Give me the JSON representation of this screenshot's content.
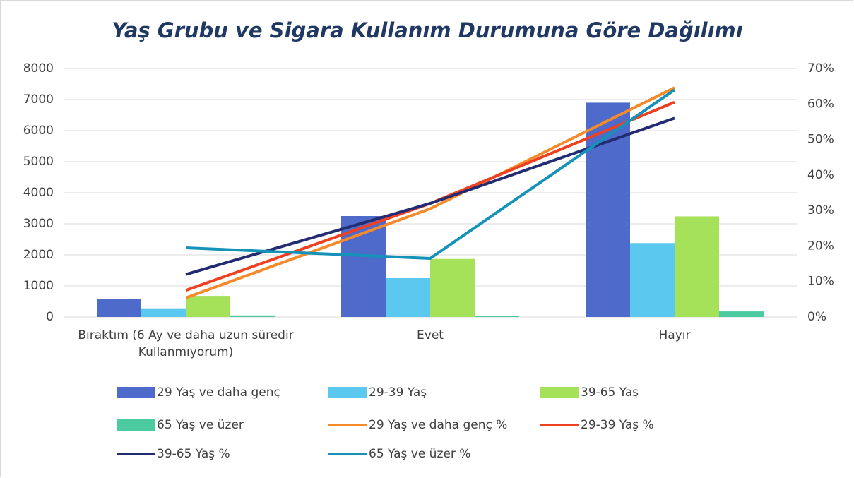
{
  "chart_data": {
    "type": "bar-line",
    "title": "Yaş Grubu ve Sigara Kullanım Durumuna Göre Dağılımı",
    "categories": [
      "Bıraktım (6 Ay ve daha uzun süredir Kullanmıyorum)",
      "Evet",
      "Hayır"
    ],
    "series": [
      {
        "name": "29 Yaş ve daha genç",
        "type": "bar",
        "color": "#4e6acb",
        "values": [
          570,
          3250,
          6900
        ]
      },
      {
        "name": "29-39 Yaş",
        "type": "bar",
        "color": "#5bc8f0",
        "values": [
          280,
          1250,
          2380
        ]
      },
      {
        "name": "39-65 Yaş",
        "type": "bar",
        "color": "#a6e15a",
        "values": [
          680,
          1870,
          3240
        ]
      },
      {
        "name": "65 Yaş ve üzer",
        "type": "bar",
        "color": "#4dcba0",
        "values": [
          50,
          30,
          180
        ]
      },
      {
        "name": "29 Yaş ve daha genç %",
        "type": "line",
        "axis": "y2",
        "color": "#f58a2a",
        "values": [
          5.4,
          30.5,
          64.6
        ]
      },
      {
        "name": "29-39 Yaş %",
        "type": "line",
        "axis": "y2",
        "color": "#ee4122",
        "values": [
          7.5,
          32,
          60.5
        ]
      },
      {
        "name": "39-65 Yaş %",
        "type": "line",
        "axis": "y2",
        "color": "#232c73",
        "values": [
          12,
          32,
          56
        ]
      },
      {
        "name": "65 Yaş ve üzer %",
        "type": "line",
        "axis": "y2",
        "color": "#1592b8",
        "values": [
          19.5,
          16.5,
          64
        ]
      }
    ],
    "ylim": [
      0,
      8000
    ],
    "yticks": [
      0,
      1000,
      2000,
      3000,
      4000,
      5000,
      6000,
      7000,
      8000
    ],
    "y2lim": [
      0,
      70
    ],
    "y2ticks": [
      {
        "value": 0,
        "label": "0%"
      },
      {
        "value": 10,
        "label": "10%"
      },
      {
        "value": 20,
        "label": "20%"
      },
      {
        "value": 30,
        "label": "30%"
      },
      {
        "value": 40,
        "label": "40%"
      },
      {
        "value": 50,
        "label": "50%"
      },
      {
        "value": 60,
        "label": "60%"
      },
      {
        "value": 70,
        "label": "70%"
      }
    ],
    "grid": true
  }
}
